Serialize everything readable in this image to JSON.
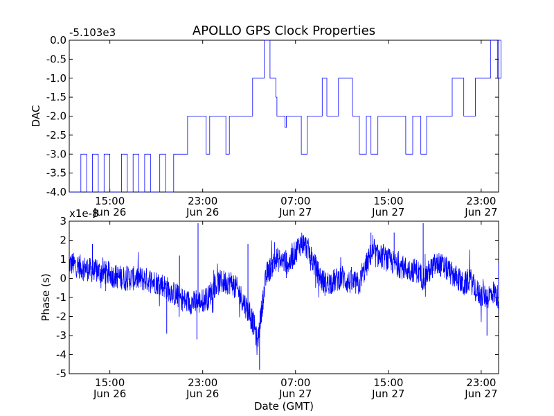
{
  "chart_data": [
    {
      "type": "line",
      "title": "APOLLO GPS Clock Properties",
      "ylabel": "DAC",
      "xlabel": "",
      "offset_label": "-5.103e3",
      "ylim": [
        -4.0,
        0.0
      ],
      "yticks": [
        "0.0",
        "-0.5",
        "-1.0",
        "-1.5",
        "-2.0",
        "-2.5",
        "-3.0",
        "-3.5",
        "-4.0"
      ],
      "xlim": [
        "Jun 26 11:30",
        "Jun 28 00:30"
      ],
      "xticks": [
        {
          "time": "Jun 26 15:00",
          "l1": "15:00",
          "l2": "Jun 26"
        },
        {
          "time": "Jun 26 23:00",
          "l1": "23:00",
          "l2": "Jun 26"
        },
        {
          "time": "Jun 27 07:00",
          "l1": "07:00",
          "l2": "Jun 27"
        },
        {
          "time": "Jun 27 15:00",
          "l1": "15:00",
          "l2": "Jun 27"
        },
        {
          "time": "Jun 27 23:00",
          "l1": "23:00",
          "l2": "Jun 27"
        }
      ],
      "line_color": "#0000ff",
      "grid": false,
      "series": [
        {
          "segments": [
            [
              0.0,
              -4.0
            ],
            [
              1.0,
              -3.0
            ],
            [
              1.5,
              -4.0
            ],
            [
              2.0,
              -3.0
            ],
            [
              2.5,
              -4.0
            ],
            [
              3.0,
              -3.0
            ],
            [
              3.5,
              -4.0
            ],
            [
              4.5,
              -3.0
            ],
            [
              5.0,
              -4.0
            ],
            [
              5.5,
              -3.0
            ],
            [
              6.0,
              -4.0
            ],
            [
              6.5,
              -3.0
            ],
            [
              7.0,
              -4.0
            ],
            [
              7.8,
              -3.0
            ],
            [
              8.3,
              -4.0
            ],
            [
              9.0,
              -3.0
            ],
            [
              10.2,
              -2.0
            ],
            [
              11.8,
              -3.0
            ],
            [
              12.1,
              -2.0
            ],
            [
              13.5,
              -3.0
            ],
            [
              13.8,
              -2.0
            ],
            [
              15.0,
              -2.0
            ],
            [
              15.8,
              -1.0
            ],
            [
              16.8,
              0.0
            ],
            [
              17.3,
              -1.0
            ],
            [
              17.8,
              -1.5
            ],
            [
              17.9,
              -2.0
            ],
            [
              18.6,
              -2.3
            ],
            [
              18.7,
              -2.0
            ],
            [
              20.0,
              -3.0
            ],
            [
              20.5,
              -2.0
            ],
            [
              21.8,
              -1.0
            ],
            [
              22.2,
              -2.0
            ],
            [
              23.2,
              -1.0
            ],
            [
              24.4,
              -2.0
            ],
            [
              25.0,
              -3.0
            ],
            [
              25.6,
              -2.0
            ],
            [
              26.0,
              -3.0
            ],
            [
              26.6,
              -2.0
            ],
            [
              29.0,
              -3.0
            ],
            [
              29.6,
              -2.0
            ],
            [
              30.3,
              -3.0
            ],
            [
              30.8,
              -2.0
            ],
            [
              33.0,
              -1.0
            ],
            [
              34.0,
              -2.0
            ],
            [
              35.0,
              -1.0
            ],
            [
              36.3,
              0.0
            ],
            [
              36.9,
              -1.0
            ],
            [
              37.0,
              0.0
            ],
            [
              37.2,
              -1.0
            ]
          ]
        }
      ]
    },
    {
      "type": "line",
      "title": "",
      "ylabel": "Phase (s)",
      "xlabel": "Date (GMT)",
      "offset_label": "x1e-8",
      "ylim": [
        -5,
        3
      ],
      "yticks": [
        "3",
        "2",
        "1",
        "0",
        "-1",
        "-2",
        "-3",
        "-4",
        "-5"
      ],
      "xlim": [
        "Jun 26 11:30",
        "Jun 28 00:30"
      ],
      "xticks": [
        {
          "time": "Jun 26 15:00",
          "l1": "15:00",
          "l2": "Jun 26"
        },
        {
          "time": "Jun 26 23:00",
          "l1": "23:00",
          "l2": "Jun 26"
        },
        {
          "time": "Jun 27 07:00",
          "l1": "07:00",
          "l2": "Jun 27"
        },
        {
          "time": "Jun 27 15:00",
          "l1": "15:00",
          "l2": "Jun 27"
        },
        {
          "time": "Jun 27 23:00",
          "l1": "23:00",
          "l2": "Jun 27"
        }
      ],
      "line_color": "#0000ff",
      "grid": false,
      "series": [
        {
          "trend": [
            [
              0.0,
              0.8
            ],
            [
              1.0,
              0.6
            ],
            [
              2.0,
              0.4
            ],
            [
              3.0,
              0.3
            ],
            [
              4.0,
              0.1
            ],
            [
              5.0,
              0.0
            ],
            [
              6.0,
              0.0
            ],
            [
              7.0,
              -0.1
            ],
            [
              8.0,
              -0.3
            ],
            [
              9.0,
              -0.8
            ],
            [
              10.0,
              -1.2
            ],
            [
              11.0,
              -1.3
            ],
            [
              12.0,
              -1.0
            ],
            [
              12.5,
              -0.4
            ],
            [
              13.0,
              -0.2
            ],
            [
              14.0,
              -0.2
            ],
            [
              14.5,
              -0.6
            ],
            [
              15.0,
              -1.2
            ],
            [
              15.5,
              -1.8
            ],
            [
              16.0,
              -2.6
            ],
            [
              16.2,
              -3.5
            ],
            [
              16.6,
              -1.5
            ],
            [
              17.0,
              0.2
            ],
            [
              17.8,
              1.0
            ],
            [
              18.5,
              0.9
            ],
            [
              19.0,
              0.8
            ],
            [
              19.5,
              1.4
            ],
            [
              20.0,
              1.9
            ],
            [
              20.5,
              1.6
            ],
            [
              21.0,
              0.9
            ],
            [
              21.5,
              0.2
            ],
            [
              22.0,
              -0.3
            ],
            [
              22.5,
              -0.2
            ],
            [
              23.0,
              -0.1
            ],
            [
              23.5,
              0.1
            ],
            [
              24.0,
              -0.2
            ],
            [
              25.0,
              -0.3
            ],
            [
              25.5,
              0.5
            ],
            [
              26.0,
              1.3
            ],
            [
              27.0,
              1.1
            ],
            [
              28.0,
              0.8
            ],
            [
              29.0,
              0.5
            ],
            [
              30.0,
              0.4
            ],
            [
              30.5,
              0.0
            ],
            [
              31.5,
              0.7
            ],
            [
              32.0,
              0.7
            ],
            [
              32.5,
              0.5
            ],
            [
              33.0,
              0.2
            ],
            [
              33.5,
              0.0
            ],
            [
              34.0,
              -0.4
            ],
            [
              34.5,
              0.0
            ],
            [
              35.0,
              -0.6
            ],
            [
              35.5,
              -0.9
            ],
            [
              36.0,
              -1.0
            ],
            [
              36.5,
              -0.7
            ],
            [
              37.0,
              -1.0
            ]
          ],
          "spikes": [
            [
              2.0,
              1.8
            ],
            [
              8.4,
              -2.9
            ],
            [
              9.5,
              1.2
            ],
            [
              11.0,
              -3.2
            ],
            [
              11.1,
              2.9
            ],
            [
              15.4,
              1.8
            ],
            [
              16.4,
              -4.8
            ],
            [
              17.7,
              1.9
            ],
            [
              20.0,
              2.1
            ],
            [
              26.0,
              2.4
            ],
            [
              28.0,
              2.4
            ],
            [
              30.5,
              2.9
            ],
            [
              36.0,
              -3.0
            ],
            [
              37.0,
              0.8
            ]
          ]
        }
      ]
    }
  ]
}
